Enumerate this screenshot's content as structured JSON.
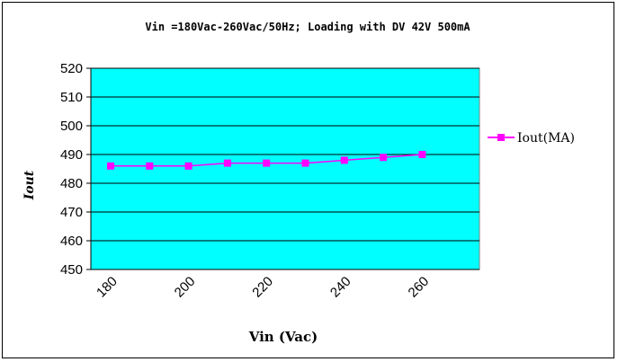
{
  "chart_data": {
    "type": "line",
    "title": "Vin =180Vac-260Vac/50Hz; Loading with DV 42V 500mA",
    "xlabel": "Vin (Vac)",
    "ylabel": "Iout",
    "x_tick_labels": [
      "180",
      "200",
      "220",
      "240",
      "260"
    ],
    "y_tick_labels": [
      "450",
      "460",
      "470",
      "480",
      "490",
      "500",
      "510",
      "520"
    ],
    "ylim": [
      450,
      520
    ],
    "series": [
      {
        "name": "Iout(MA)",
        "color": "#ff00ff",
        "x": [
          180,
          190,
          200,
          210,
          220,
          230,
          240,
          250,
          260
        ],
        "values": [
          486,
          486,
          486,
          487,
          487,
          487,
          488,
          489,
          490
        ]
      }
    ],
    "plot_background": "#00ffff",
    "grid": true,
    "legend_position": "right"
  }
}
